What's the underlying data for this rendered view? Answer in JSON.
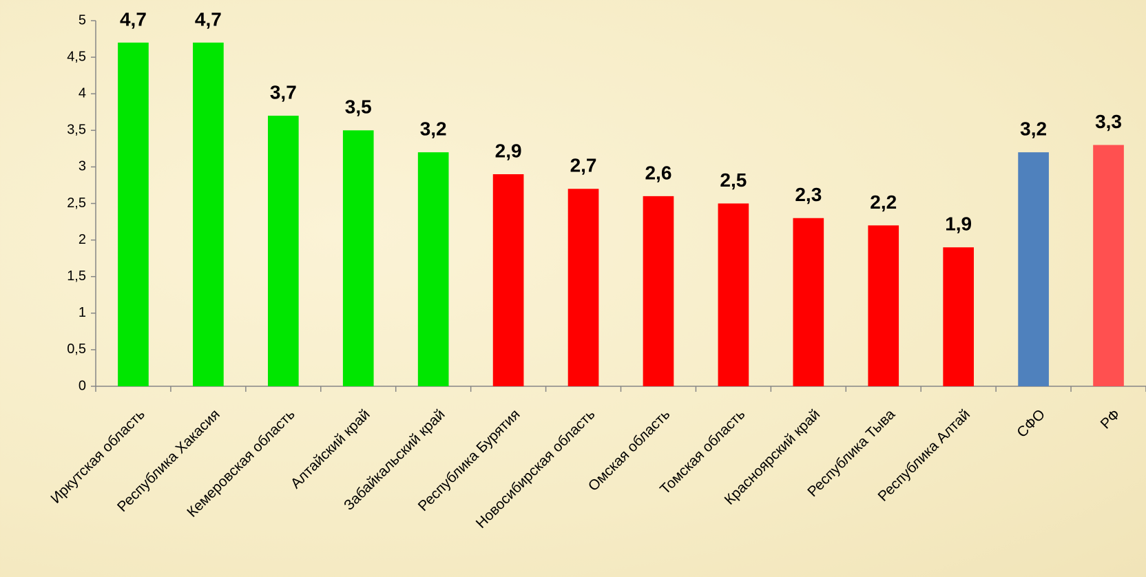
{
  "chart_data": {
    "type": "bar",
    "categories": [
      "Иркутская область",
      "Республика Хакасия",
      "Кемеровская область",
      "Алтайский край",
      "Забайкальский край",
      "Республика Бурятия",
      "Новосибирская область",
      "Омская область",
      "Томская область",
      "Красноярский край",
      "Республика Тыва",
      "Республика Алтай",
      "СФО",
      "РФ"
    ],
    "values": [
      4.7,
      4.7,
      3.7,
      3.5,
      3.2,
      2.9,
      2.7,
      2.6,
      2.5,
      2.3,
      2.2,
      1.9,
      3.2,
      3.3
    ],
    "value_labels": [
      "4,7",
      "4,7",
      "3,7",
      "3,5",
      "3,2",
      "2,9",
      "2,7",
      "2,6",
      "2,5",
      "2,3",
      "2,2",
      "1,9",
      "3,2",
      "3,3"
    ],
    "colors": [
      "#00e600",
      "#00e600",
      "#00e600",
      "#00e600",
      "#00e600",
      "#ff0000",
      "#ff0000",
      "#ff0000",
      "#ff0000",
      "#ff0000",
      "#ff0000",
      "#ff0000",
      "#4f81bd",
      "#ff5050"
    ],
    "ylim": [
      0,
      5
    ],
    "yticks": [
      0,
      {
        "value": 0.5,
        "label": "0,5"
      },
      1,
      {
        "value": 1.5,
        "label": "1,5"
      },
      2,
      {
        "value": 2.5,
        "label": "2,5"
      },
      3,
      {
        "value": 3.5,
        "label": "3,5"
      },
      4,
      {
        "value": 4.5,
        "label": "4,5"
      },
      5
    ],
    "grid": false
  }
}
